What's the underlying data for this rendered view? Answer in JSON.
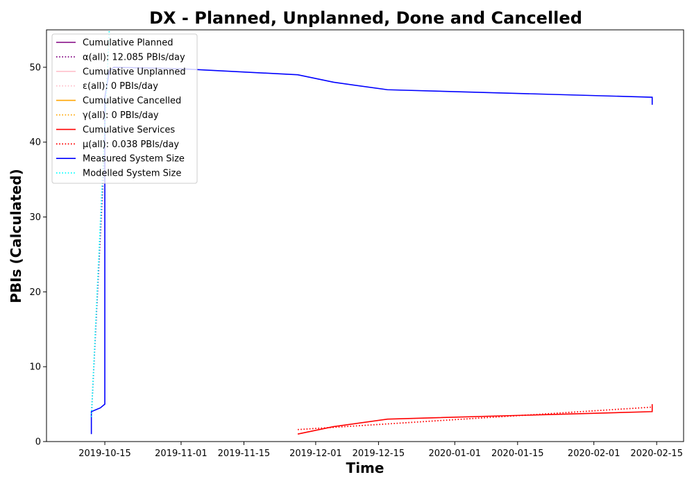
{
  "chart_data": {
    "type": "line",
    "title": "DX - Planned, Unplanned, Done  and Cancelled",
    "xlabel": "Time",
    "ylabel": "PBIs (Calculated)",
    "xlim": [
      "2019-10-02",
      "2020-02-21"
    ],
    "ylim": [
      0,
      55
    ],
    "x_ticks": [
      "2019-10-15",
      "2019-11-01",
      "2019-11-15",
      "2019-12-01",
      "2019-12-15",
      "2020-01-01",
      "2020-01-15",
      "2020-02-01",
      "2020-02-15"
    ],
    "y_ticks": [
      0,
      10,
      20,
      30,
      40,
      50
    ],
    "grid": false,
    "legend_position": "top-left",
    "series": [
      {
        "name": "Cumulative Planned",
        "color": "#800080",
        "style": "solid",
        "points": []
      },
      {
        "name": "α(all): 12.085 PBIs/day",
        "color": "#800080",
        "style": "dotted",
        "points": [
          [
            "2019-10-12",
            3.3
          ],
          [
            "2019-10-15",
            39.6
          ]
        ]
      },
      {
        "name": "Cumulative Unplanned",
        "color": "#ffc0cb",
        "style": "solid",
        "points": []
      },
      {
        "name": "ε(all): 0 PBIs/day",
        "color": "#ffc0cb",
        "style": "dotted",
        "points": []
      },
      {
        "name": "Cumulative Cancelled",
        "color": "#ffa500",
        "style": "solid",
        "points": []
      },
      {
        "name": "γ(all): 0 PBIs/day",
        "color": "#ffa500",
        "style": "dotted",
        "points": []
      },
      {
        "name": "Cumulative Services",
        "color": "#ff0000",
        "style": "solid",
        "points": [
          [
            "2019-11-27",
            1
          ],
          [
            "2019-12-05",
            2
          ],
          [
            "2019-12-17",
            3
          ],
          [
            "2020-02-14",
            4
          ],
          [
            "2020-02-14",
            5
          ]
        ]
      },
      {
        "name": "μ(all): 0.038 PBIs/day",
        "color": "#ff0000",
        "style": "dotted",
        "points": [
          [
            "2019-11-27",
            1.6
          ],
          [
            "2020-02-14",
            4.6
          ]
        ]
      },
      {
        "name": "Measured System Size",
        "color": "#0000ff",
        "style": "solid",
        "points": [
          [
            "2019-10-12",
            1
          ],
          [
            "2019-10-12",
            4
          ],
          [
            "2019-10-14",
            4.5
          ],
          [
            "2019-10-15",
            5
          ],
          [
            "2019-10-15",
            46
          ],
          [
            "2019-10-16",
            49.5
          ],
          [
            "2019-10-17",
            50
          ],
          [
            "2019-11-01",
            49.8
          ],
          [
            "2019-11-27",
            49
          ],
          [
            "2019-12-05",
            48
          ],
          [
            "2019-12-17",
            47
          ],
          [
            "2020-02-14",
            46
          ],
          [
            "2020-02-14",
            45
          ]
        ]
      },
      {
        "name": "Modelled System Size",
        "color": "#00ffff",
        "style": "dotted",
        "points": [
          [
            "2019-10-12",
            3.3
          ],
          [
            "2019-10-16",
            55
          ]
        ]
      }
    ]
  }
}
